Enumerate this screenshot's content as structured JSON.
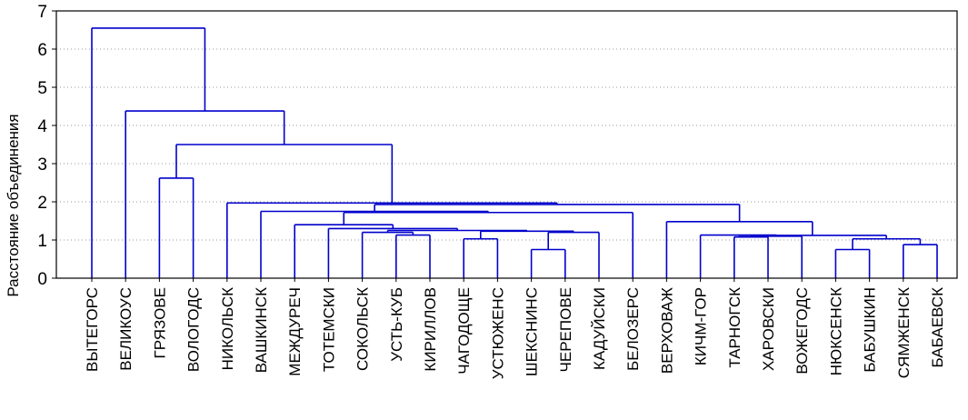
{
  "chart_data": {
    "type": "dendrogram",
    "ylabel": "Расстояние объединения",
    "ylim": [
      0,
      7
    ],
    "yticks": [
      0,
      1,
      2,
      3,
      4,
      5,
      6,
      7
    ],
    "grid": true,
    "colors": {
      "branch": "#0000cc",
      "grid": "#9a9a9a",
      "frame": "#000000"
    },
    "leaves": [
      "ВЫТЕГОРС",
      "ВЕЛИКОУС",
      "ГРЯЗОВЕ",
      "ВОЛОГОДС",
      "НИКОЛЬСК",
      "ВАШКИНСК",
      "МЕЖДУРЕЧ",
      "ТОТЕМСКИ",
      "СОКОЛЬСК",
      "УСТЬ-КУБ",
      "КИРИЛЛОВ",
      "ЧАГОДОЩЕ",
      "УСТЮЖЕНС",
      "ШЕКСНИНС",
      "ЧЕРЕПОВЕ",
      "КАДУЙСКИ",
      "БЕЛОЗЕРС",
      "ВЕРХОВАЖ",
      "КИЧМ-ГОР",
      "ТАРНОГСК",
      "ХАРОВСКИ",
      "ВОЖЕГОДС",
      "НЮКСЕНСК",
      "БАБУШКИН",
      "СЯМЖЕНСК",
      "БАБАЕВСК"
    ],
    "merges": [
      {
        "a": "ШЕКСНИНС",
        "b": "ЧЕРЕПОВЕ",
        "height": 0.75
      },
      {
        "a": "НЮКСЕНСК",
        "b": "БАБУШКИН",
        "height": 0.75
      },
      {
        "a": "СЯМЖЕНСК",
        "b": "БАБАЕВСК",
        "height": 0.88
      },
      {
        "a": "ЧАГОДОЩЕ",
        "b": "УСТЮЖЕНС",
        "height": 1.03
      },
      {
        "a": "НЮКСЕНСК+БАБУШКИН",
        "b": "СЯМЖЕНСК+БАБАЕВСК",
        "height": 1.03
      },
      {
        "a": "ТАРНОГСК",
        "b": "ХАРОВСКИ",
        "height": 1.08
      },
      {
        "a": "ТАРНОГСК+ХАРОВСКИ",
        "b": "ВОЖЕГОДС",
        "height": 1.1
      },
      {
        "a": "УСТЬ-КУБ",
        "b": "КИРИЛЛОВ",
        "height": 1.13
      },
      {
        "a": "КИЧМ-ГОР",
        "b": "ТАРНОГСК+ХАРОВСКИ+ВОЖЕГОДС",
        "height": 1.13
      },
      {
        "a": "КИЧМ-ГОР+…+ВОЖЕГОДС",
        "b": "НЮКСЕНСК+…+БАБАЕВСК",
        "height": 1.12
      },
      {
        "a": "СОКОЛЬСК",
        "b": "УСТЬ-КУБ+КИРИЛЛОВ",
        "height": 1.2
      },
      {
        "a": "ШЕКСНИНС+ЧЕРЕПОВЕ",
        "b": "КАДУЙСКИ",
        "height": 1.2
      },
      {
        "a": "ЧАГОДОЩЕ+УСТЮЖЕНС",
        "b": "ШЕКСНИНС+ЧЕРЕПОВЕ+КАДУЙСКИ",
        "height": 1.23
      },
      {
        "a": "СОКОЛЬСК+УСТЬ-КУБ+КИРИЛЛОВ",
        "b": "ЧАГОДОЩЕ+…+КАДУЙСКИ",
        "height": 1.25
      },
      {
        "a": "ТОТЕМСКИ",
        "b": "СОКОЛЬСК+…+КАДУЙСКИ",
        "height": 1.3
      },
      {
        "a": "МЕЖДУРЕЧ",
        "b": "ТОТЕМСКИ+…+КАДУЙСКИ",
        "height": 1.4
      },
      {
        "a": "ВЕРХОВАЖ",
        "b": "КИЧМ-ГОР+…+БАБАЕВСК",
        "height": 1.48
      },
      {
        "a": "МЕЖДУРЕЧ+…+КАДУЙСКИ",
        "b": "БЕЛОЗЕРС",
        "height": 1.72
      },
      {
        "a": "ВАШКИНСК",
        "b": "МЕЖДУРЕЧ+…+БЕЛОЗЕРС",
        "height": 1.75
      },
      {
        "a": "ВАШКИНСК+…+БЕЛОЗЕРС",
        "b": "ВЕРХОВАЖ+…+БАБАЕВСК",
        "height": 1.93
      },
      {
        "a": "НИКОЛЬСК",
        "b": "ВАШКИНСК+…+БАБАЕВСК",
        "height": 1.97
      },
      {
        "a": "ГРЯЗОВЕ",
        "b": "ВОЛОГОДС",
        "height": 2.62
      },
      {
        "a": "ГРЯЗОВЕ+ВОЛОГОДС",
        "b": "НИКОЛЬСК+…+БАБАЕВСК",
        "height": 3.5
      },
      {
        "a": "ВЕЛИКОУС",
        "b": "ГРЯЗОВЕ+…+БАБАЕВСК",
        "height": 4.38
      },
      {
        "a": "ВЫТЕГОРС",
        "b": "ВЕЛИКОУС+…+БАБАЕВСК",
        "height": 6.55
      }
    ]
  }
}
